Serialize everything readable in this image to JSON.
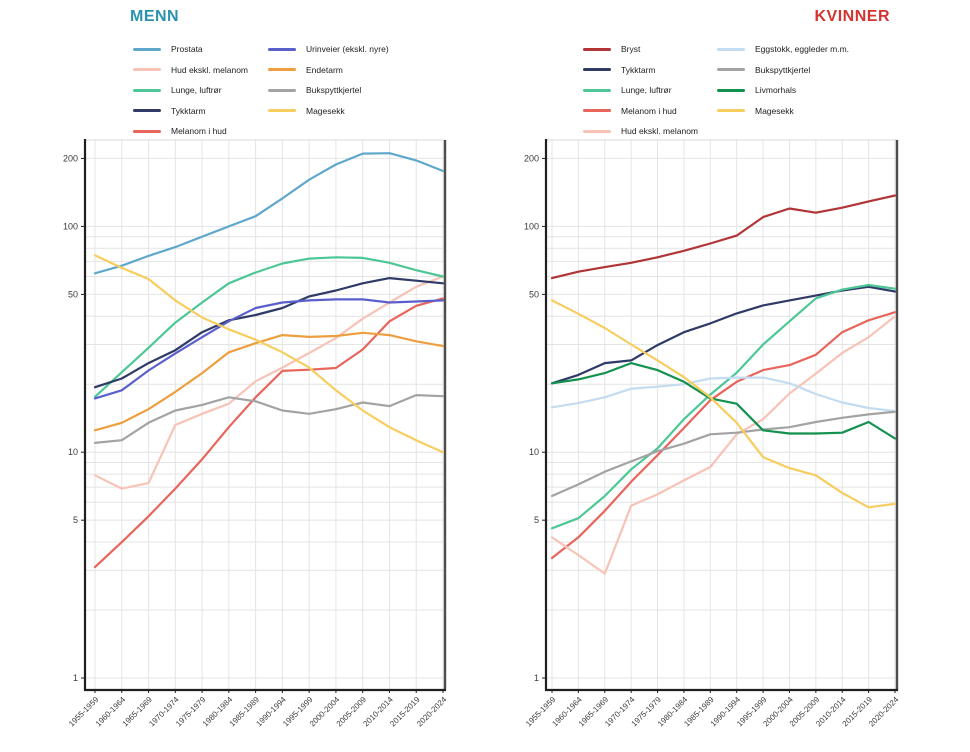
{
  "page": {
    "background": "#ffffff",
    "grid_color": "#e4e4e4",
    "axis_color": "#1f1f1f",
    "right_border_color": "#4d4d4d",
    "top_border_color": "#d8d8d8",
    "tick_text_color": "#3a3a3a"
  },
  "chart_data": [
    {
      "type": "line",
      "title": "MENN",
      "title_color": "#2A93AE",
      "yscale": "log",
      "ylim": [
        0.88,
        240
      ],
      "y_tick_labels": [
        "200",
        "100",
        "50",
        "10",
        "5",
        "1"
      ],
      "legend_position": "top",
      "legend_split": 5,
      "grid": true,
      "categories": [
        "1955-1959",
        "1960-1964",
        "1965-1969",
        "1970-1974",
        "1975-1979",
        "1980-1984",
        "1985-1989",
        "1990-1994",
        "1995-1999",
        "2000-2004",
        "2005-2009",
        "2010-2014",
        "2015-2019",
        "2020-2024"
      ],
      "series": [
        {
          "name": "Prostata",
          "color": "#5FA8CC",
          "values": [
            62,
            67,
            74,
            81,
            90,
            100,
            111,
            133,
            161,
            188,
            210,
            211,
            196,
            176
          ]
        },
        {
          "name": "Hud ekskl. melanom",
          "color": "#F7C3B7",
          "values": [
            7.9,
            6.9,
            7.3,
            13.2,
            14.8,
            16.4,
            20.6,
            23.7,
            27.5,
            32,
            39,
            46,
            54,
            60
          ]
        },
        {
          "name": "Lunge, luftrør",
          "color": "#4EC796",
          "values": [
            17.6,
            22.6,
            29,
            37.5,
            46,
            56,
            62.5,
            68.5,
            72,
            73,
            72.5,
            69,
            64,
            60
          ]
        },
        {
          "name": "Tykktarm",
          "color": "#2F3A67",
          "values": [
            19.4,
            21.2,
            24.8,
            28.3,
            34,
            38.4,
            40.5,
            43.5,
            49,
            52,
            56,
            59,
            57.5,
            56
          ]
        },
        {
          "name": "Melanom i hud",
          "color": "#E8655C",
          "values": [
            3.1,
            4.0,
            5.2,
            6.9,
            9.3,
            12.9,
            17.5,
            22.9,
            23.2,
            23.6,
            28.5,
            38,
            44.5,
            48
          ]
        },
        {
          "name": "Urinveier (ekskl. nyre)",
          "color": "#5A5FCC",
          "values": [
            17.3,
            18.8,
            23,
            27.4,
            32.3,
            38,
            43.5,
            46,
            47,
            47.5,
            47.5,
            46,
            46.5,
            47
          ]
        },
        {
          "name": "Endetarm",
          "color": "#ED9F3F",
          "values": [
            12.5,
            13.5,
            15.5,
            18.5,
            22.4,
            27.7,
            30.4,
            33,
            32.4,
            32.7,
            33.8,
            33,
            31,
            29.5
          ]
        },
        {
          "name": "Bukspyttkjertel",
          "color": "#A3A3A3",
          "values": [
            11,
            11.3,
            13.5,
            15.3,
            16.2,
            17.5,
            16.8,
            15.3,
            14.8,
            15.5,
            16.6,
            16,
            17.9,
            17.7
          ]
        },
        {
          "name": "Magesekk",
          "color": "#F7CD5F",
          "values": [
            74.5,
            65.5,
            58.5,
            47,
            39.5,
            35,
            31.5,
            27.7,
            23.7,
            18.8,
            15.3,
            12.9,
            11.3,
            10
          ]
        }
      ]
    },
    {
      "type": "line",
      "title": "KVINNER",
      "title_color": "#D2342F",
      "yscale": "log",
      "ylim": [
        0.88,
        240
      ],
      "y_tick_labels": [
        "200",
        "100",
        "50",
        "10",
        "5",
        "1"
      ],
      "legend_position": "top",
      "legend_split": 5,
      "grid": true,
      "categories": [
        "1955-1959",
        "1960-1964",
        "1965-1969",
        "1970-1974",
        "1975-1979",
        "1980-1984",
        "1985-1989",
        "1990-1994",
        "1995-1999",
        "2000-2004",
        "2005-2009",
        "2010-2014",
        "2015-2019",
        "2020-2024"
      ],
      "series": [
        {
          "name": "Bryst",
          "color": "#B13437",
          "values": [
            59,
            63,
            66,
            69,
            73,
            78,
            84,
            91,
            110,
            120,
            115,
            121,
            129,
            137
          ]
        },
        {
          "name": "Tykktarm",
          "color": "#2F3A67",
          "values": [
            20.2,
            22,
            24.8,
            25.5,
            29.8,
            34,
            37.2,
            41.2,
            44.7,
            47,
            49.4,
            52,
            54,
            51.5
          ]
        },
        {
          "name": "Lunge, luftrør",
          "color": "#4EC796",
          "values": [
            4.6,
            5.1,
            6.4,
            8.4,
            10.4,
            14,
            18,
            22.5,
            30,
            38,
            48,
            52.5,
            55,
            53
          ]
        },
        {
          "name": "Melanom i hud",
          "color": "#E8655C",
          "values": [
            3.4,
            4.2,
            5.5,
            7.4,
            9.7,
            12.8,
            17,
            20.5,
            23.1,
            24.3,
            27,
            34,
            38.4,
            41.7
          ]
        },
        {
          "name": "Hud ekskl. melanom",
          "color": "#F7C3B7",
          "values": [
            4.2,
            3.5,
            2.9,
            5.8,
            6.5,
            7.5,
            8.6,
            12,
            14,
            18.2,
            22.3,
            27.5,
            32.3,
            40
          ]
        },
        {
          "name": "Eggstokk, eggleder m.m.",
          "color": "#C3DCEF",
          "values": [
            15.8,
            16.5,
            17.5,
            19.1,
            19.5,
            20,
            21.2,
            21.4,
            21.4,
            20.2,
            18.1,
            16.6,
            15.7,
            15.2
          ]
        },
        {
          "name": "Bukspyttkjertel",
          "color": "#A3A3A3",
          "values": [
            6.4,
            7.2,
            8.2,
            9.1,
            10.1,
            10.9,
            12,
            12.2,
            12.6,
            12.9,
            13.6,
            14.2,
            14.7,
            15.1
          ]
        },
        {
          "name": "Livmorhals",
          "color": "#13914E",
          "values": [
            20.2,
            21,
            22.4,
            24.8,
            23.1,
            20.5,
            17.3,
            16.4,
            12.5,
            12.1,
            12.1,
            12.2,
            13.6,
            11.5
          ]
        },
        {
          "name": "Magesekk",
          "color": "#F7CD5F",
          "values": [
            47,
            41,
            35.5,
            30,
            25.5,
            21.5,
            17.5,
            13.5,
            9.5,
            8.5,
            7.9,
            6.6,
            5.7,
            5.9
          ]
        }
      ]
    }
  ]
}
